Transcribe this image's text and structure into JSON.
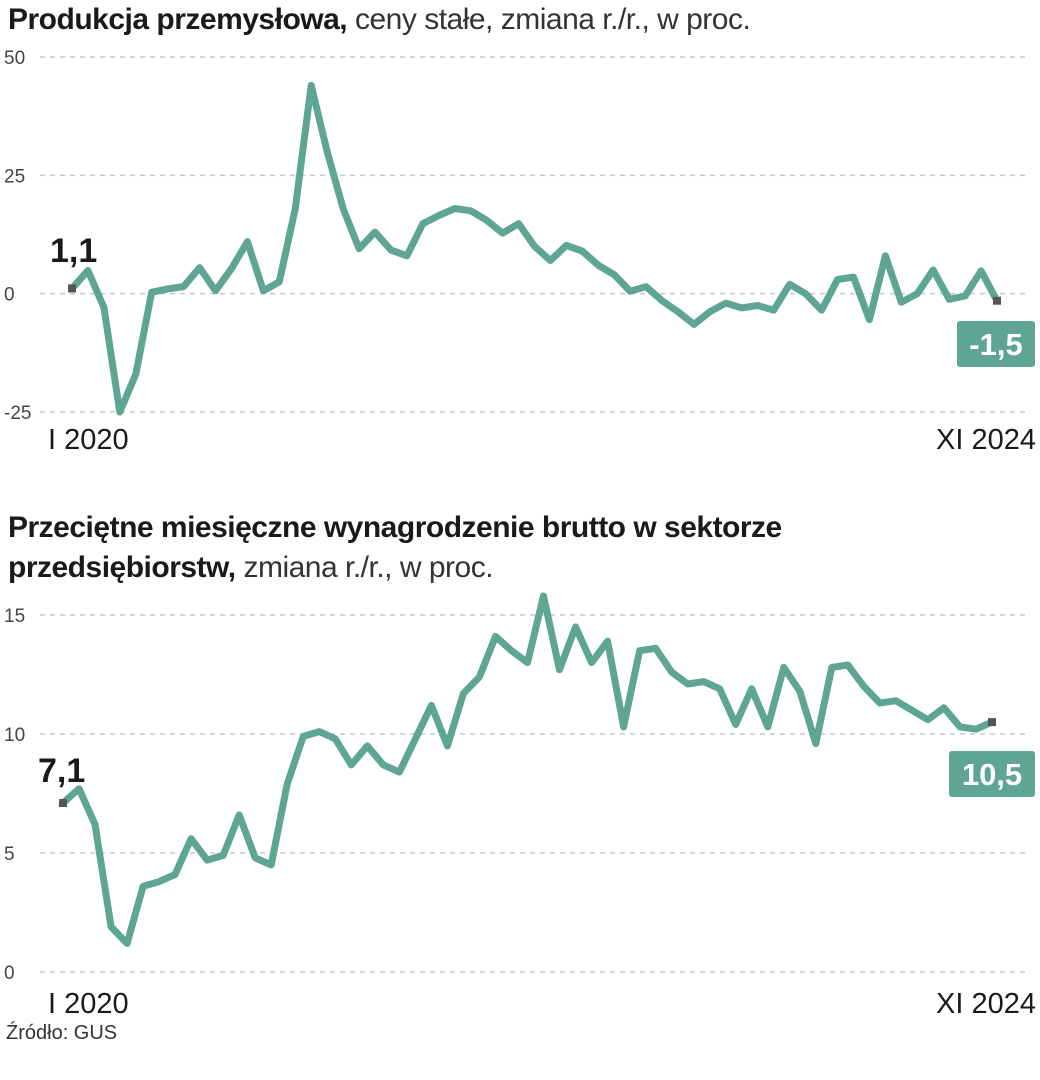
{
  "chart_data": [
    {
      "type": "line",
      "title": "Produkcja przemysłowa,",
      "subtitle": "ceny stałe, zmiana r./r., w proc.",
      "ylim": [
        -25,
        50
      ],
      "yticks": [
        50,
        25,
        0,
        -25
      ],
      "ytick_labels": [
        "50",
        "25",
        "0",
        "-25"
      ],
      "grid": true,
      "x_start_label": "I 2020",
      "x_end_label": "XI 2024",
      "start_label": "1,1",
      "end_label": "-1,5",
      "color": "#5ea593",
      "values": [
        1.1,
        4.9,
        -2.9,
        -25.0,
        -17.0,
        0.3,
        1.0,
        1.5,
        5.5,
        0.6,
        5.3,
        11.0,
        0.6,
        2.5,
        18.0,
        44.0,
        30.0,
        18.0,
        9.5,
        13.0,
        9.2,
        8.0,
        14.8,
        16.5,
        18.0,
        17.5,
        15.5,
        12.8,
        14.8,
        10.0,
        7.0,
        10.2,
        9.0,
        6.0,
        4.0,
        0.5,
        1.5,
        -1.5,
        -3.8,
        -6.5,
        -3.8,
        -2.0,
        -3.0,
        -2.5,
        -3.5,
        2.0,
        0.0,
        -3.5,
        3.0,
        3.5,
        -5.5,
        8.0,
        -1.8,
        0.0,
        5.0,
        -1.2,
        -0.5,
        4.8,
        -1.5
      ]
    },
    {
      "type": "line",
      "title": "Przeciętne miesięczne wynagrodzenie brutto w sektorze przedsiębiorstw,",
      "title_line1": "Przeciętne miesięczne wynagrodzenie brutto w sektorze",
      "title_line2": "przedsiębiorstw,",
      "subtitle": "zmiana r./r., w proc.",
      "ylim": [
        0,
        15
      ],
      "yticks": [
        15,
        10,
        5,
        0
      ],
      "ytick_labels": [
        "15",
        "10",
        "5",
        "0"
      ],
      "grid": true,
      "x_start_label": "I 2020",
      "x_end_label": "XI 2024",
      "start_label": "7,1",
      "end_label": "10,5",
      "color": "#5ea593",
      "values": [
        7.1,
        7.7,
        6.2,
        1.9,
        1.2,
        3.6,
        3.8,
        4.1,
        5.6,
        4.7,
        4.9,
        6.6,
        4.8,
        4.5,
        7.9,
        9.9,
        10.1,
        9.8,
        8.7,
        9.5,
        8.7,
        8.4,
        9.8,
        11.2,
        9.5,
        11.7,
        12.4,
        14.1,
        13.5,
        13.0,
        15.8,
        12.7,
        14.5,
        13.0,
        13.9,
        10.3,
        13.5,
        13.6,
        12.6,
        12.1,
        12.2,
        11.9,
        10.4,
        11.9,
        10.3,
        12.8,
        11.8,
        9.6,
        12.8,
        12.9,
        12.0,
        11.3,
        11.4,
        11.0,
        10.6,
        11.1,
        10.3,
        10.2,
        10.5
      ]
    }
  ],
  "source": "Źródło: GUS"
}
